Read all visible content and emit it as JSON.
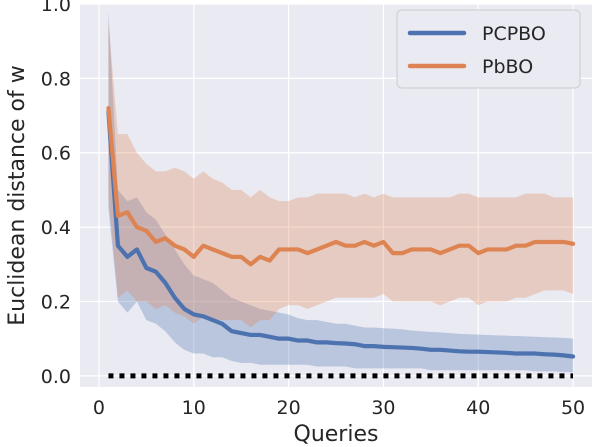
{
  "chart_data": {
    "type": "line",
    "title": "",
    "xlabel": "Queries",
    "ylabel": "Euclidean distance of w",
    "xlim": [
      -2,
      52
    ],
    "ylim": [
      -0.03,
      1.0
    ],
    "xticks": [
      0,
      10,
      20,
      30,
      40,
      50
    ],
    "xtick_labels": [
      "0",
      "10",
      "20",
      "30",
      "40",
      "50"
    ],
    "yticks": [
      0.0,
      0.2,
      0.4,
      0.6,
      0.8,
      1.0
    ],
    "ytick_labels": [
      "0.0",
      "0.2",
      "0.4",
      "0.6",
      "0.8",
      "1.0"
    ],
    "grid": true,
    "legend_position": "top-right",
    "x": [
      1,
      2,
      3,
      4,
      5,
      6,
      7,
      8,
      9,
      10,
      11,
      12,
      13,
      14,
      15,
      16,
      17,
      18,
      19,
      20,
      21,
      22,
      23,
      24,
      25,
      26,
      27,
      28,
      29,
      30,
      31,
      32,
      33,
      34,
      35,
      36,
      37,
      38,
      39,
      40,
      41,
      42,
      43,
      44,
      45,
      46,
      47,
      48,
      49,
      50
    ],
    "series": [
      {
        "name": "PCPBO",
        "color": "#4c72b0",
        "values": [
          0.71,
          0.35,
          0.32,
          0.34,
          0.29,
          0.28,
          0.25,
          0.21,
          0.18,
          0.165,
          0.16,
          0.15,
          0.14,
          0.12,
          0.115,
          0.11,
          0.11,
          0.105,
          0.1,
          0.1,
          0.095,
          0.095,
          0.09,
          0.09,
          0.088,
          0.087,
          0.085,
          0.08,
          0.08,
          0.078,
          0.077,
          0.076,
          0.075,
          0.073,
          0.07,
          0.07,
          0.068,
          0.066,
          0.065,
          0.065,
          0.064,
          0.063,
          0.062,
          0.06,
          0.06,
          0.06,
          0.058,
          0.057,
          0.055,
          0.052
        ],
        "upper": [
          0.98,
          0.5,
          0.47,
          0.48,
          0.44,
          0.42,
          0.38,
          0.34,
          0.3,
          0.27,
          0.26,
          0.25,
          0.23,
          0.21,
          0.2,
          0.19,
          0.18,
          0.175,
          0.17,
          0.165,
          0.155,
          0.15,
          0.15,
          0.145,
          0.14,
          0.14,
          0.135,
          0.13,
          0.13,
          0.128,
          0.127,
          0.125,
          0.122,
          0.12,
          0.118,
          0.117,
          0.115,
          0.113,
          0.112,
          0.111,
          0.11,
          0.109,
          0.108,
          0.107,
          0.106,
          0.105,
          0.104,
          0.103,
          0.102,
          0.1
        ],
        "lower": [
          0.45,
          0.2,
          0.17,
          0.2,
          0.15,
          0.14,
          0.12,
          0.09,
          0.07,
          0.06,
          0.06,
          0.05,
          0.05,
          0.04,
          0.035,
          0.035,
          0.03,
          0.03,
          0.03,
          0.03,
          0.03,
          0.03,
          0.025,
          0.025,
          0.025,
          0.025,
          0.02,
          0.02,
          0.02,
          0.02,
          0.02,
          0.02,
          0.02,
          0.02,
          0.015,
          0.015,
          0.015,
          0.015,
          0.015,
          0.015,
          0.015,
          0.015,
          0.015,
          0.015,
          0.015,
          0.012,
          0.012,
          0.012,
          0.01,
          0.01
        ]
      },
      {
        "name": "PbBO",
        "color": "#dd8452",
        "values": [
          0.72,
          0.43,
          0.44,
          0.4,
          0.39,
          0.36,
          0.37,
          0.35,
          0.34,
          0.32,
          0.35,
          0.34,
          0.33,
          0.32,
          0.32,
          0.3,
          0.32,
          0.31,
          0.34,
          0.34,
          0.34,
          0.33,
          0.34,
          0.35,
          0.36,
          0.35,
          0.35,
          0.36,
          0.35,
          0.36,
          0.33,
          0.33,
          0.34,
          0.34,
          0.34,
          0.33,
          0.34,
          0.35,
          0.35,
          0.33,
          0.34,
          0.34,
          0.34,
          0.35,
          0.35,
          0.36,
          0.36,
          0.36,
          0.36,
          0.355
        ],
        "upper": [
          0.95,
          0.65,
          0.65,
          0.6,
          0.57,
          0.55,
          0.55,
          0.56,
          0.55,
          0.53,
          0.55,
          0.53,
          0.52,
          0.5,
          0.5,
          0.48,
          0.5,
          0.48,
          0.47,
          0.47,
          0.48,
          0.48,
          0.49,
          0.49,
          0.49,
          0.49,
          0.48,
          0.49,
          0.48,
          0.49,
          0.48,
          0.48,
          0.48,
          0.48,
          0.48,
          0.48,
          0.48,
          0.49,
          0.49,
          0.48,
          0.48,
          0.48,
          0.48,
          0.48,
          0.49,
          0.49,
          0.49,
          0.48,
          0.48,
          0.48
        ],
        "lower": [
          0.48,
          0.21,
          0.23,
          0.2,
          0.2,
          0.18,
          0.19,
          0.17,
          0.16,
          0.14,
          0.16,
          0.15,
          0.15,
          0.15,
          0.15,
          0.13,
          0.15,
          0.15,
          0.18,
          0.19,
          0.19,
          0.18,
          0.19,
          0.2,
          0.21,
          0.21,
          0.21,
          0.21,
          0.21,
          0.22,
          0.2,
          0.2,
          0.2,
          0.2,
          0.2,
          0.19,
          0.2,
          0.21,
          0.21,
          0.19,
          0.2,
          0.2,
          0.2,
          0.21,
          0.21,
          0.22,
          0.23,
          0.23,
          0.23,
          0.22
        ]
      }
    ],
    "reference_line": {
      "y": 0.0,
      "x_range": [
        1,
        50
      ],
      "style": "dotted",
      "color": "#000000"
    }
  }
}
